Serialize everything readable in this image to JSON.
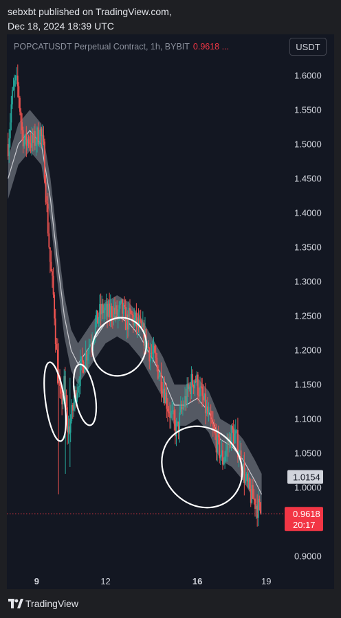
{
  "header": {
    "publisher_line": "sebxbt published on TradingView.com,",
    "date_line": "Dec 18, 2024 18:39 UTC"
  },
  "legend": {
    "symbol": "POPCATUSDT Perpetual Contract, 1h, BYBIT",
    "last_price": "0.9618 ..."
  },
  "currency_button": "USDT",
  "footer": {
    "brand": "TradingView",
    "logo_icon": "tradingview-logo-icon"
  },
  "chart_data": {
    "type": "candlestick",
    "title": "POPCATUSDT Perpetual Contract, 1h, BYBIT",
    "y_range": [
      0.88,
      1.66
    ],
    "y_ticks": [
      "1.6000",
      "1.5500",
      "1.5000",
      "1.4500",
      "1.4000",
      "1.3500",
      "1.3000",
      "1.2500",
      "1.2000",
      "1.1500",
      "1.1000",
      "1.0500",
      "1.0000",
      "0.9000"
    ],
    "x_range": [
      7.7,
      19.8
    ],
    "x_ticks": [
      {
        "value": 9,
        "label": "9",
        "bold": true
      },
      {
        "value": 12,
        "label": "12",
        "bold": false
      },
      {
        "value": 16,
        "label": "16",
        "bold": true
      },
      {
        "value": 19,
        "label": "19",
        "bold": false
      }
    ],
    "price_labels": [
      {
        "value": 1.0154,
        "text": "1.0154",
        "style": "light"
      },
      {
        "value": 0.9618,
        "text": "0.9618",
        "countdown": "20:17",
        "style": "red"
      }
    ],
    "price_path": [
      [
        7.75,
        1.5
      ],
      [
        7.9,
        1.56
      ],
      [
        8.05,
        1.59
      ],
      [
        8.2,
        1.58
      ],
      [
        8.35,
        1.52
      ],
      [
        8.5,
        1.5
      ],
      [
        8.65,
        1.51
      ],
      [
        8.8,
        1.5
      ],
      [
        9.0,
        1.51
      ],
      [
        9.15,
        1.52
      ],
      [
        9.3,
        1.49
      ],
      [
        9.45,
        1.4
      ],
      [
        9.6,
        1.32
      ],
      [
        9.75,
        1.27
      ],
      [
        9.9,
        1.17
      ],
      [
        10.05,
        1.12
      ],
      [
        10.2,
        1.15
      ],
      [
        10.35,
        1.08
      ],
      [
        10.5,
        1.1
      ],
      [
        10.7,
        1.14
      ],
      [
        10.9,
        1.17
      ],
      [
        11.1,
        1.19
      ],
      [
        11.3,
        1.21
      ],
      [
        11.5,
        1.23
      ],
      [
        11.7,
        1.25
      ],
      [
        11.9,
        1.26
      ],
      [
        12.1,
        1.25
      ],
      [
        12.3,
        1.26
      ],
      [
        12.5,
        1.25
      ],
      [
        12.7,
        1.26
      ],
      [
        12.9,
        1.24
      ],
      [
        13.1,
        1.25
      ],
      [
        13.3,
        1.24
      ],
      [
        13.5,
        1.23
      ],
      [
        13.7,
        1.22
      ],
      [
        13.9,
        1.2
      ],
      [
        14.1,
        1.19
      ],
      [
        14.3,
        1.17
      ],
      [
        14.5,
        1.15
      ],
      [
        14.7,
        1.12
      ],
      [
        14.9,
        1.1
      ],
      [
        15.1,
        1.08
      ],
      [
        15.3,
        1.11
      ],
      [
        15.5,
        1.13
      ],
      [
        15.7,
        1.15
      ],
      [
        15.9,
        1.16
      ],
      [
        16.1,
        1.14
      ],
      [
        16.3,
        1.12
      ],
      [
        16.5,
        1.1
      ],
      [
        16.7,
        1.08
      ],
      [
        16.9,
        1.06
      ],
      [
        17.1,
        1.04
      ],
      [
        17.3,
        1.06
      ],
      [
        17.5,
        1.08
      ],
      [
        17.7,
        1.07
      ],
      [
        17.9,
        1.04
      ],
      [
        18.1,
        1.01
      ],
      [
        18.3,
        0.99
      ],
      [
        18.5,
        0.98
      ],
      [
        18.65,
        0.97
      ],
      [
        18.78,
        0.962
      ]
    ],
    "moving_average": [
      [
        7.75,
        1.45
      ],
      [
        8.2,
        1.5
      ],
      [
        8.7,
        1.52
      ],
      [
        9.2,
        1.5
      ],
      [
        9.6,
        1.42
      ],
      [
        9.9,
        1.33
      ],
      [
        10.2,
        1.25
      ],
      [
        10.5,
        1.2
      ],
      [
        10.8,
        1.18
      ],
      [
        11.2,
        1.2
      ],
      [
        11.6,
        1.22
      ],
      [
        12.0,
        1.24
      ],
      [
        12.5,
        1.25
      ],
      [
        13.0,
        1.24
      ],
      [
        13.5,
        1.22
      ],
      [
        14.0,
        1.19
      ],
      [
        14.5,
        1.16
      ],
      [
        15.0,
        1.12
      ],
      [
        15.5,
        1.12
      ],
      [
        16.0,
        1.13
      ],
      [
        16.5,
        1.11
      ],
      [
        17.0,
        1.07
      ],
      [
        17.5,
        1.06
      ],
      [
        18.0,
        1.04
      ],
      [
        18.5,
        1.01
      ],
      [
        18.8,
        0.99
      ]
    ],
    "annotations": [
      {
        "type": "ellipse",
        "cx": 9.8,
        "cy": 1.125,
        "rx": 0.75,
        "ry": 0.058,
        "rot": -8
      },
      {
        "type": "ellipse",
        "cx": 11.1,
        "cy": 1.135,
        "rx": 0.8,
        "ry": 0.045,
        "rot": -10
      },
      {
        "type": "ellipse",
        "cx": 12.6,
        "cy": 1.205,
        "rx": 2.1,
        "ry": 0.043,
        "rot": 22
      },
      {
        "type": "ellipse",
        "cx": 16.2,
        "cy": 1.03,
        "rx": 3.4,
        "ry": 0.055,
        "rot": 48
      }
    ]
  }
}
